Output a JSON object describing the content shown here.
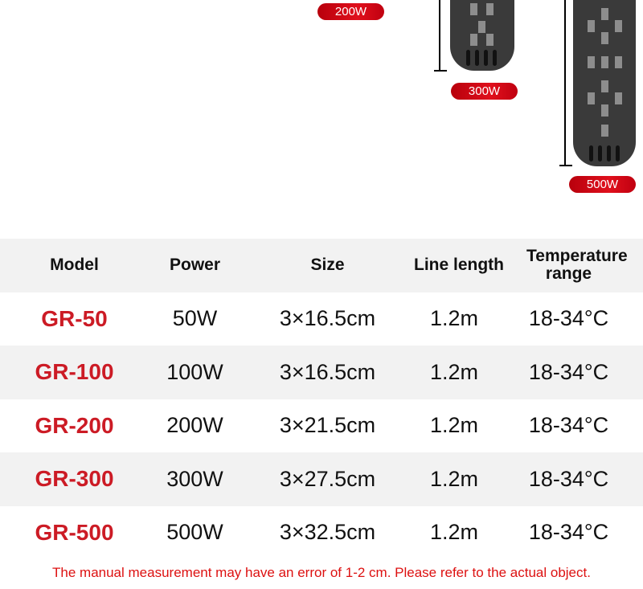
{
  "badges": [
    "200W",
    "300W",
    "500W"
  ],
  "table": {
    "headers": [
      "Model",
      "Power",
      "Size",
      "Line length",
      "Temperature range"
    ],
    "rows": [
      [
        "GR-50",
        "50W",
        "3×16.5cm",
        "1.2m",
        "18-34°C"
      ],
      [
        "GR-100",
        "100W",
        "3×16.5cm",
        "1.2m",
        "18-34°C"
      ],
      [
        "GR-200",
        "200W",
        "3×21.5cm",
        "1.2m",
        "18-34°C"
      ],
      [
        "GR-300",
        "300W",
        "3×27.5cm",
        "1.2m",
        "18-34°C"
      ],
      [
        "GR-500",
        "500W",
        "3×32.5cm",
        "1.2m",
        "18-34°C"
      ]
    ]
  },
  "note": "The manual measurement may have an error of 1-2 cm. Please refer to the actual object.",
  "colors": {
    "accent": "#cc1b25",
    "badge": "#d0101c"
  }
}
